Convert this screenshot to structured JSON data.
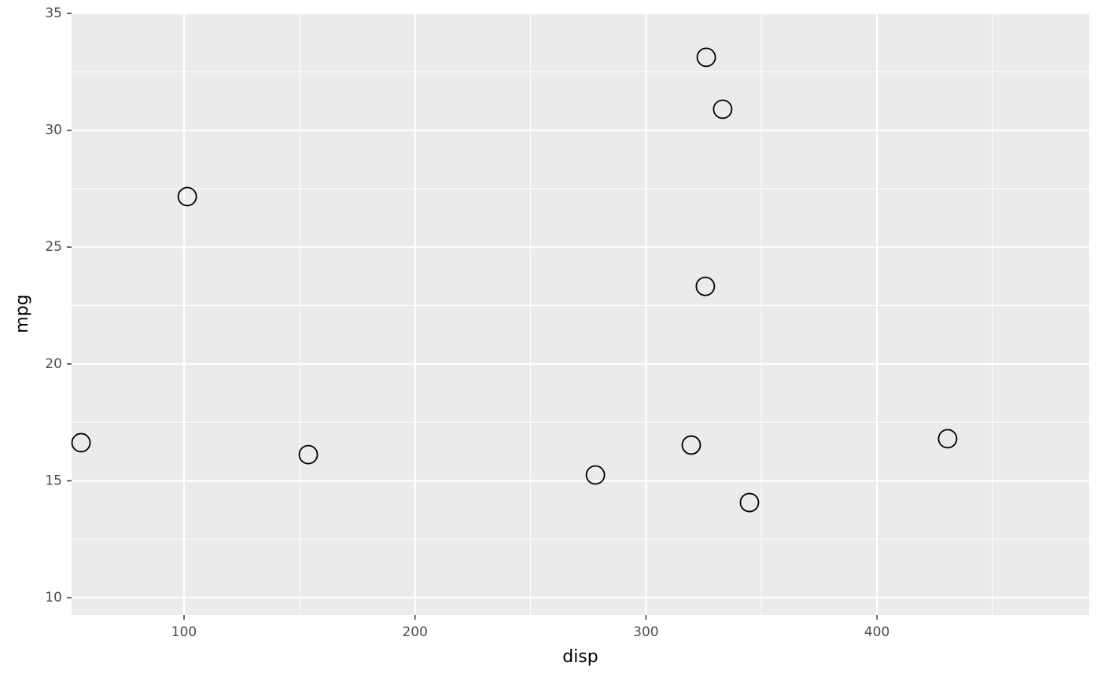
{
  "chart_data": {
    "type": "scatter",
    "x_label": "disp",
    "y_label": "mpg",
    "x": [
      55.4,
      101.4,
      153.8,
      278.1,
      319.6,
      325.7,
      326.1,
      333.2,
      344.8,
      430.6
    ],
    "values": [
      16.63,
      27.16,
      16.12,
      15.25,
      16.53,
      23.32,
      33.12,
      30.9,
      14.07,
      16.8
    ],
    "color": "#000000",
    "xlim": [
      51.3,
      491.9
    ],
    "ylim": [
      9.26,
      35.0
    ],
    "xticks": [
      100,
      200,
      300,
      400
    ],
    "yticks": [
      10,
      15,
      20,
      25,
      30,
      35
    ],
    "x_minor_ticks": [
      150,
      250,
      350,
      450
    ],
    "y_minor_ticks": [
      12.5,
      17.5,
      22.5,
      27.5,
      32.5
    ],
    "grid": true
  }
}
